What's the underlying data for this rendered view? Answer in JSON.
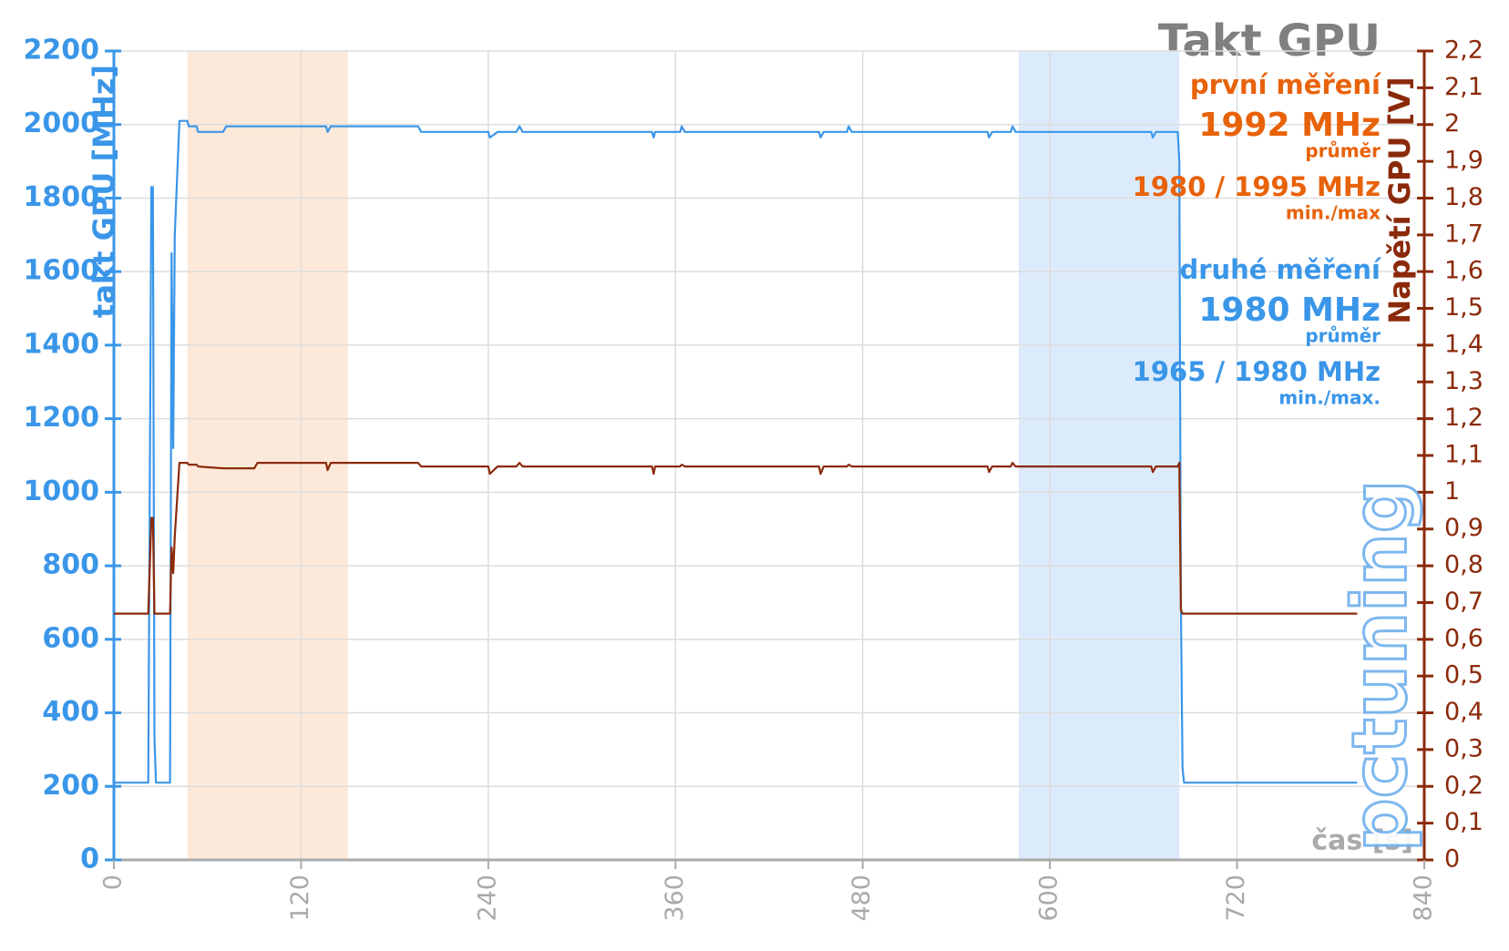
{
  "chart_data": {
    "type": "line",
    "title": "Takt GPU",
    "ylabel": "takt GPU [MHz]",
    "y2label": "Napětí GPU [V]",
    "xlabel": "čas [s]",
    "logo": "pctuning",
    "annotations": [
      {
        "text": "první měření",
        "color": "#e8620a",
        "size": "large"
      },
      {
        "text": "1992 MHz",
        "color": "#e8620a",
        "size": "xlarge"
      },
      {
        "text": "průměr",
        "color": "#e8620a",
        "size": "small"
      },
      {
        "text": "1980 / 1995 MHz",
        "color": "#e8620a",
        "size": "large"
      },
      {
        "text": "min./max",
        "color": "#e8620a",
        "size": "small"
      },
      {
        "text": "druhé měření",
        "color": "#3a96e8",
        "size": "large"
      },
      {
        "text": "1980 MHz",
        "color": "#3a96e8",
        "size": "xlarge"
      },
      {
        "text": "průměr",
        "color": "#3a96e8",
        "size": "small"
      },
      {
        "text": "1965 / 1980 MHz",
        "color": "#3a96e8",
        "size": "large"
      },
      {
        "text": "min./max.",
        "color": "#3a96e8",
        "size": "small"
      }
    ],
    "highlight_ranges": [
      {
        "from": 47,
        "to": 150,
        "color": "#fde9da"
      },
      {
        "from": 580,
        "to": 683,
        "color": "#dcebfb"
      }
    ],
    "x": [
      0,
      22,
      24,
      25,
      26,
      27,
      28,
      36,
      37,
      38,
      39,
      42,
      47,
      48,
      53,
      54,
      70,
      72,
      90,
      92,
      136,
      137,
      139,
      195,
      197,
      240,
      241,
      246,
      258,
      260,
      262,
      345,
      346,
      347,
      363,
      364,
      366,
      452,
      453,
      455,
      470,
      471,
      473,
      560,
      561,
      563,
      575,
      576,
      578,
      665,
      666,
      668,
      682,
      683,
      684,
      685,
      686,
      797
    ],
    "series": [
      {
        "name": "takt GPU",
        "color": "#3a96e8",
        "values": [
          210,
          210,
          1830,
          1830,
          330,
          210,
          210,
          210,
          1650,
          1120,
          1700,
          2010,
          2010,
          1995,
          1995,
          1980,
          1980,
          1995,
          1995,
          1995,
          1995,
          1980,
          1995,
          1995,
          1980,
          1980,
          1965,
          1980,
          1980,
          1995,
          1980,
          1980,
          1965,
          1980,
          1980,
          1995,
          1980,
          1980,
          1965,
          1980,
          1980,
          1995,
          1980,
          1980,
          1965,
          1980,
          1980,
          1995,
          1980,
          1980,
          1965,
          1980,
          1980,
          1900,
          700,
          250,
          210,
          210
        ]
      },
      {
        "name": "napětí GPU",
        "color": "#8b2a0a",
        "axis": "y2",
        "values": [
          0.67,
          0.67,
          0.93,
          0.93,
          0.67,
          0.67,
          0.67,
          0.67,
          0.85,
          0.78,
          0.88,
          1.08,
          1.08,
          1.075,
          1.075,
          1.07,
          1.065,
          1.065,
          1.065,
          1.08,
          1.08,
          1.06,
          1.08,
          1.08,
          1.07,
          1.07,
          1.05,
          1.07,
          1.07,
          1.08,
          1.07,
          1.07,
          1.05,
          1.07,
          1.07,
          1.075,
          1.07,
          1.07,
          1.05,
          1.07,
          1.07,
          1.075,
          1.07,
          1.07,
          1.055,
          1.07,
          1.07,
          1.08,
          1.07,
          1.07,
          1.055,
          1.07,
          1.07,
          1.08,
          0.68,
          0.67,
          0.67,
          0.67
        ]
      }
    ],
    "xlim": [
      0,
      840
    ],
    "xticks": [
      0,
      120,
      240,
      360,
      480,
      600,
      720,
      840
    ],
    "ylim": [
      0,
      2200
    ],
    "yticks": [
      0,
      200,
      400,
      600,
      800,
      1000,
      1200,
      1400,
      1600,
      1800,
      2000,
      2200
    ],
    "y2lim": [
      0,
      2.2
    ],
    "y2ticks": [
      0,
      {
        "value": 0.1,
        "label": "0,1"
      },
      {
        "value": 0.2,
        "label": "0,2"
      },
      {
        "value": 0.3,
        "label": "0,3"
      },
      {
        "value": 0.4,
        "label": "0,4"
      },
      {
        "value": 0.5,
        "label": "0,5"
      },
      {
        "value": 0.6,
        "label": "0,6"
      },
      {
        "value": 0.7,
        "label": "0,7"
      },
      {
        "value": 0.8,
        "label": "0,8"
      },
      {
        "value": 0.9,
        "label": "0,9"
      },
      1,
      {
        "value": 1.1,
        "label": "1,1"
      },
      {
        "value": 1.2,
        "label": "1,2"
      },
      {
        "value": 1.3,
        "label": "1,3"
      },
      {
        "value": 1.4,
        "label": "1,4"
      },
      {
        "value": 1.5,
        "label": "1,5"
      },
      {
        "value": 1.6,
        "label": "1,6"
      },
      {
        "value": 1.7,
        "label": "1,7"
      },
      {
        "value": 1.8,
        "label": "1,8"
      },
      {
        "value": 1.9,
        "label": "1,9"
      },
      2,
      {
        "value": 2.1,
        "label": "2,1"
      },
      {
        "value": 2.2,
        "label": "2,2"
      }
    ],
    "grid": true,
    "axis_colors": {
      "y": "#3a96e8",
      "y2": "#8b2a0a",
      "x": "#aaaaaa"
    }
  }
}
